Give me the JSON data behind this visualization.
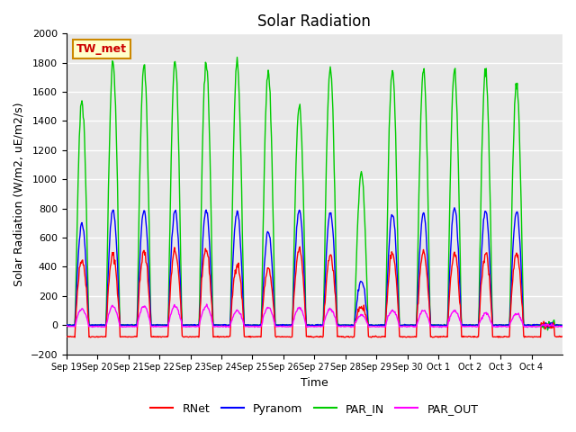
{
  "title": "Solar Radiation",
  "ylabel": "Solar Radiation (W/m2, uE/m2/s)",
  "xlabel": "Time",
  "ylim": [
    -200,
    2000
  ],
  "yticks": [
    -200,
    0,
    200,
    400,
    600,
    800,
    1000,
    1200,
    1400,
    1600,
    1800,
    2000
  ],
  "xtick_labels": [
    "Sep 19",
    "Sep 20",
    "Sep 21",
    "Sep 22",
    "Sep 23",
    "Sep 24",
    "Sep 25",
    "Sep 26",
    "Sep 27",
    "Sep 28",
    "Sep 29",
    "Sep 30",
    "Oct 1",
    "Oct 2",
    "Oct 3",
    "Oct 4"
  ],
  "legend_labels": [
    "RNet",
    "Pyranom",
    "PAR_IN",
    "PAR_OUT"
  ],
  "legend_colors": [
    "#ff0000",
    "#0000ff",
    "#00cc00",
    "#ff00ff"
  ],
  "station_label": "TW_met",
  "station_label_color": "#cc0000",
  "station_box_facecolor": "#ffffcc",
  "station_box_edgecolor": "#cc8800",
  "background_color": "#e8e8e8",
  "grid_color": "#ffffff",
  "colors": {
    "RNet": "#ff0000",
    "Pyranom": "#0000ff",
    "PAR_IN": "#00cc00",
    "PAR_OUT": "#ff00ff"
  },
  "num_days": 16,
  "day_period": 48,
  "peaks": {
    "RNet": [
      450,
      480,
      500,
      510,
      520,
      420,
      380,
      520,
      480,
      130,
      500,
      500,
      490,
      490,
      490,
      0
    ],
    "Pyranom": [
      700,
      790,
      780,
      790,
      790,
      780,
      640,
      790,
      780,
      300,
      760,
      770,
      810,
      780,
      780,
      0
    ],
    "PAR_IN": [
      1540,
      1800,
      1780,
      1800,
      1810,
      1800,
      1730,
      1500,
      1760,
      1030,
      1760,
      1750,
      1750,
      1750,
      1660,
      0
    ],
    "PAR_OUT": [
      110,
      130,
      130,
      130,
      130,
      100,
      120,
      120,
      110,
      70,
      100,
      100,
      100,
      80,
      80,
      0
    ]
  },
  "night_negative": {
    "RNet": -80,
    "Pyranom": 0,
    "PAR_IN": 0,
    "PAR_OUT": -10
  }
}
